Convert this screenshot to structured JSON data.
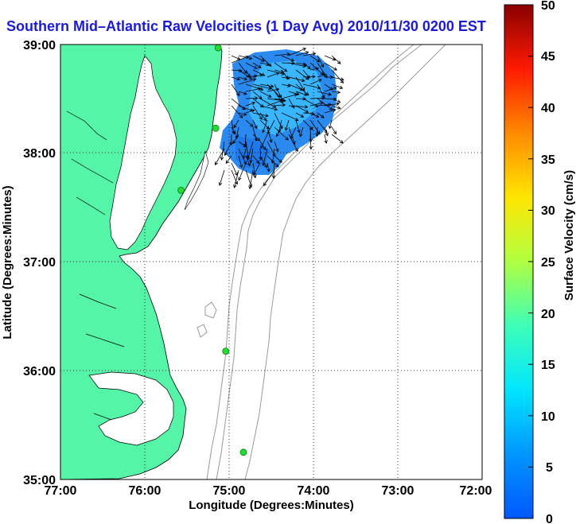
{
  "title": "Southern Mid–Atlantic Raw Velocities (1 Day Avg) 2010/11/30 0200 EST",
  "map": {
    "xlabel": "Longitude (Degrees:Minutes)",
    "ylabel": "Latitude (Degrees:Minutes)",
    "lon_range": [
      -77,
      -72
    ],
    "lat_range": [
      35,
      39
    ],
    "x_ticks": [
      "77:00",
      "76:00",
      "75:00",
      "74:00",
      "73:00",
      "72:00"
    ],
    "y_ticks": [
      "39:00",
      "38:00",
      "37:00",
      "36:00",
      "35:00"
    ],
    "grid": "dotted",
    "land_color": "#55f5a8",
    "water_color": "#ffffff",
    "bathymetry_color": "#9a9a9a",
    "station_color": "#22dd33",
    "stations": [
      {
        "lon": -75.13,
        "lat": 38.97
      },
      {
        "lon": -75.16,
        "lat": 38.23
      },
      {
        "lon": -75.57,
        "lat": 37.66
      },
      {
        "lon": -75.04,
        "lat": 36.18
      },
      {
        "lon": -74.83,
        "lat": 35.25
      }
    ]
  },
  "colorbar": {
    "label": "Surface Velocity (cm/s)",
    "ticks": [
      "50",
      "45",
      "40",
      "35",
      "30",
      "25",
      "20",
      "15",
      "10",
      "5",
      "0"
    ],
    "min": 0,
    "max": 50
  }
}
